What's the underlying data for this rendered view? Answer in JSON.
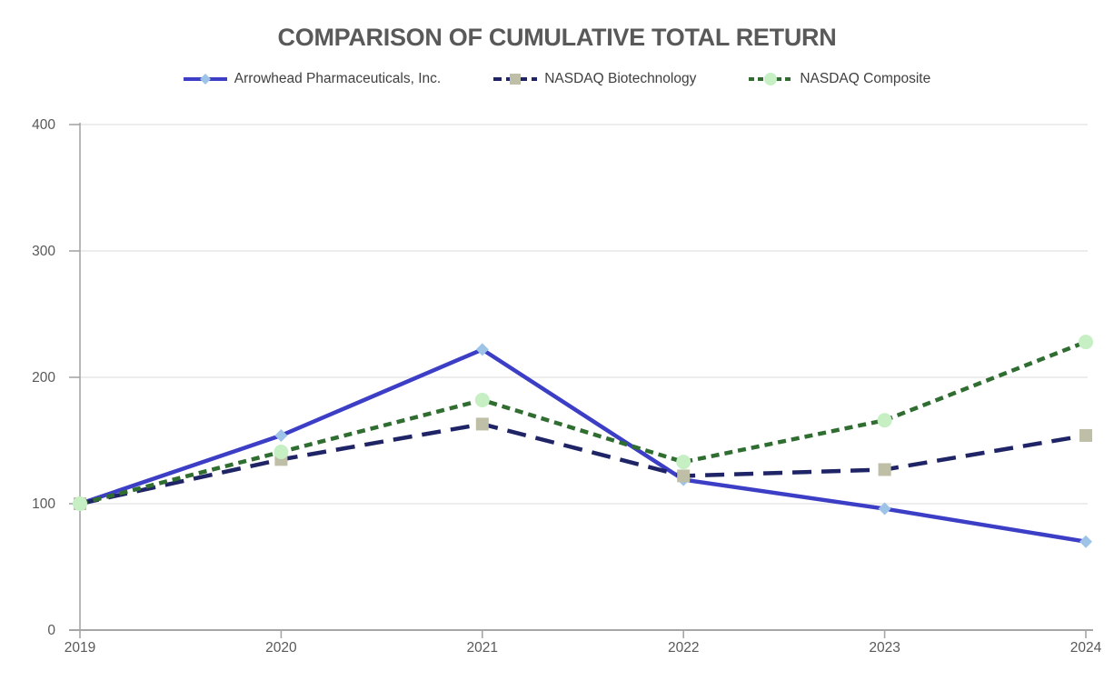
{
  "title": "COMPARISON OF CUMULATIVE TOTAL RETURN",
  "colors": {
    "background": "#FFFFFF",
    "title_text": "#595959",
    "axis_line": "#A6A6A6",
    "gridline": "#E7E7E7",
    "tick_label": "#595959",
    "legend_text": "#404040"
  },
  "chart_data": {
    "type": "line",
    "title": "COMPARISON OF CUMULATIVE TOTAL RETURN",
    "x": [
      "2019",
      "2020",
      "2021",
      "2022",
      "2023",
      "2024"
    ],
    "series": [
      {
        "name": "Arrowhead Pharmaceuticals, Inc.",
        "values": [
          100,
          154,
          222,
          119,
          96,
          70
        ],
        "line_color": "#3C3EC6",
        "dash": "solid",
        "marker": "diamond",
        "marker_color": "#9DC3E6"
      },
      {
        "name": "NASDAQ Biotechnology",
        "values": [
          100,
          135,
          163,
          122,
          127,
          154
        ],
        "line_color": "#1F2466",
        "dash": "long-dash",
        "marker": "square",
        "marker_color": "#BFBEA7"
      },
      {
        "name": "NASDAQ Composite",
        "values": [
          100,
          141,
          182,
          133,
          166,
          228
        ],
        "line_color": "#2F6D30",
        "dash": "dash",
        "marker": "circle",
        "marker_color": "#C6EFC4"
      }
    ],
    "xlabel": "",
    "ylabel": "",
    "ylim": [
      0,
      400
    ],
    "yticks": [
      0,
      100,
      200,
      300,
      400
    ],
    "grid": "horizontal",
    "legend_position": "top"
  }
}
